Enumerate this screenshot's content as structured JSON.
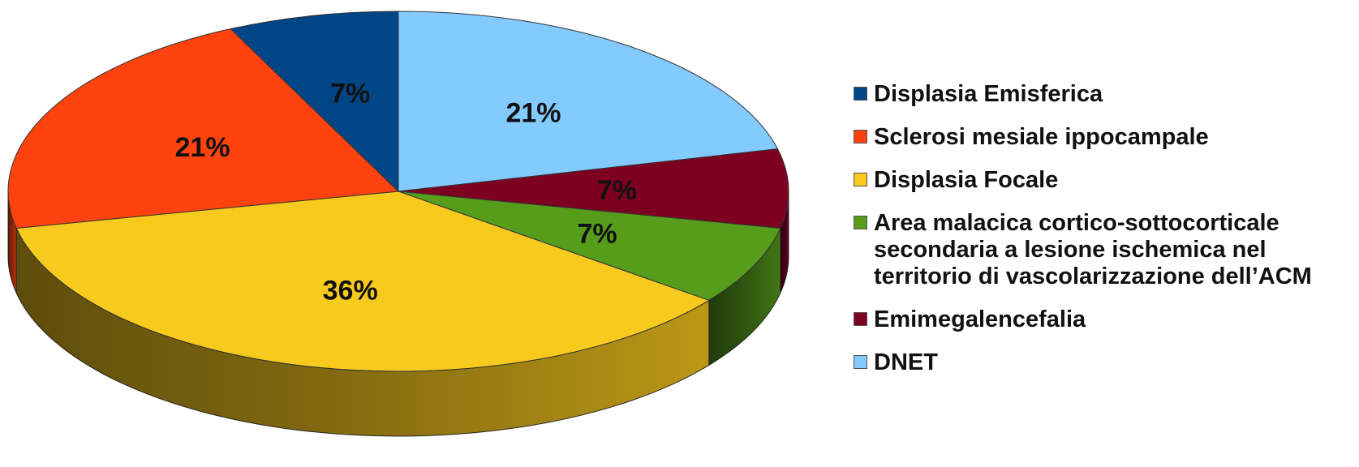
{
  "chart_data": {
    "type": "pie",
    "style": "3d",
    "slices": [
      {
        "label": "Displasia Emisferica",
        "value": 7,
        "display": "7%",
        "color": "#004586"
      },
      {
        "label": "Sclerosi mesiale ippocampale",
        "value": 21,
        "display": "21%",
        "color": "#ff420e"
      },
      {
        "label": "Displasia Focale",
        "value": 36,
        "display": "36%",
        "color": "#f9ca1e"
      },
      {
        "label": "Area malacica cortico-sottocorticale\nsecondaria a lesione ischemica nel\nterritorio di vascolarizzazione dell’ACM",
        "value": 7,
        "display": "7%",
        "color": "#579d1c"
      },
      {
        "label": "Emimegalencefalia",
        "value": 7,
        "display": "7%",
        "color": "#7e0021"
      },
      {
        "label": "DNET",
        "value": 21,
        "display": "21%",
        "color": "#83caff"
      }
    ],
    "legend_position": "right"
  }
}
